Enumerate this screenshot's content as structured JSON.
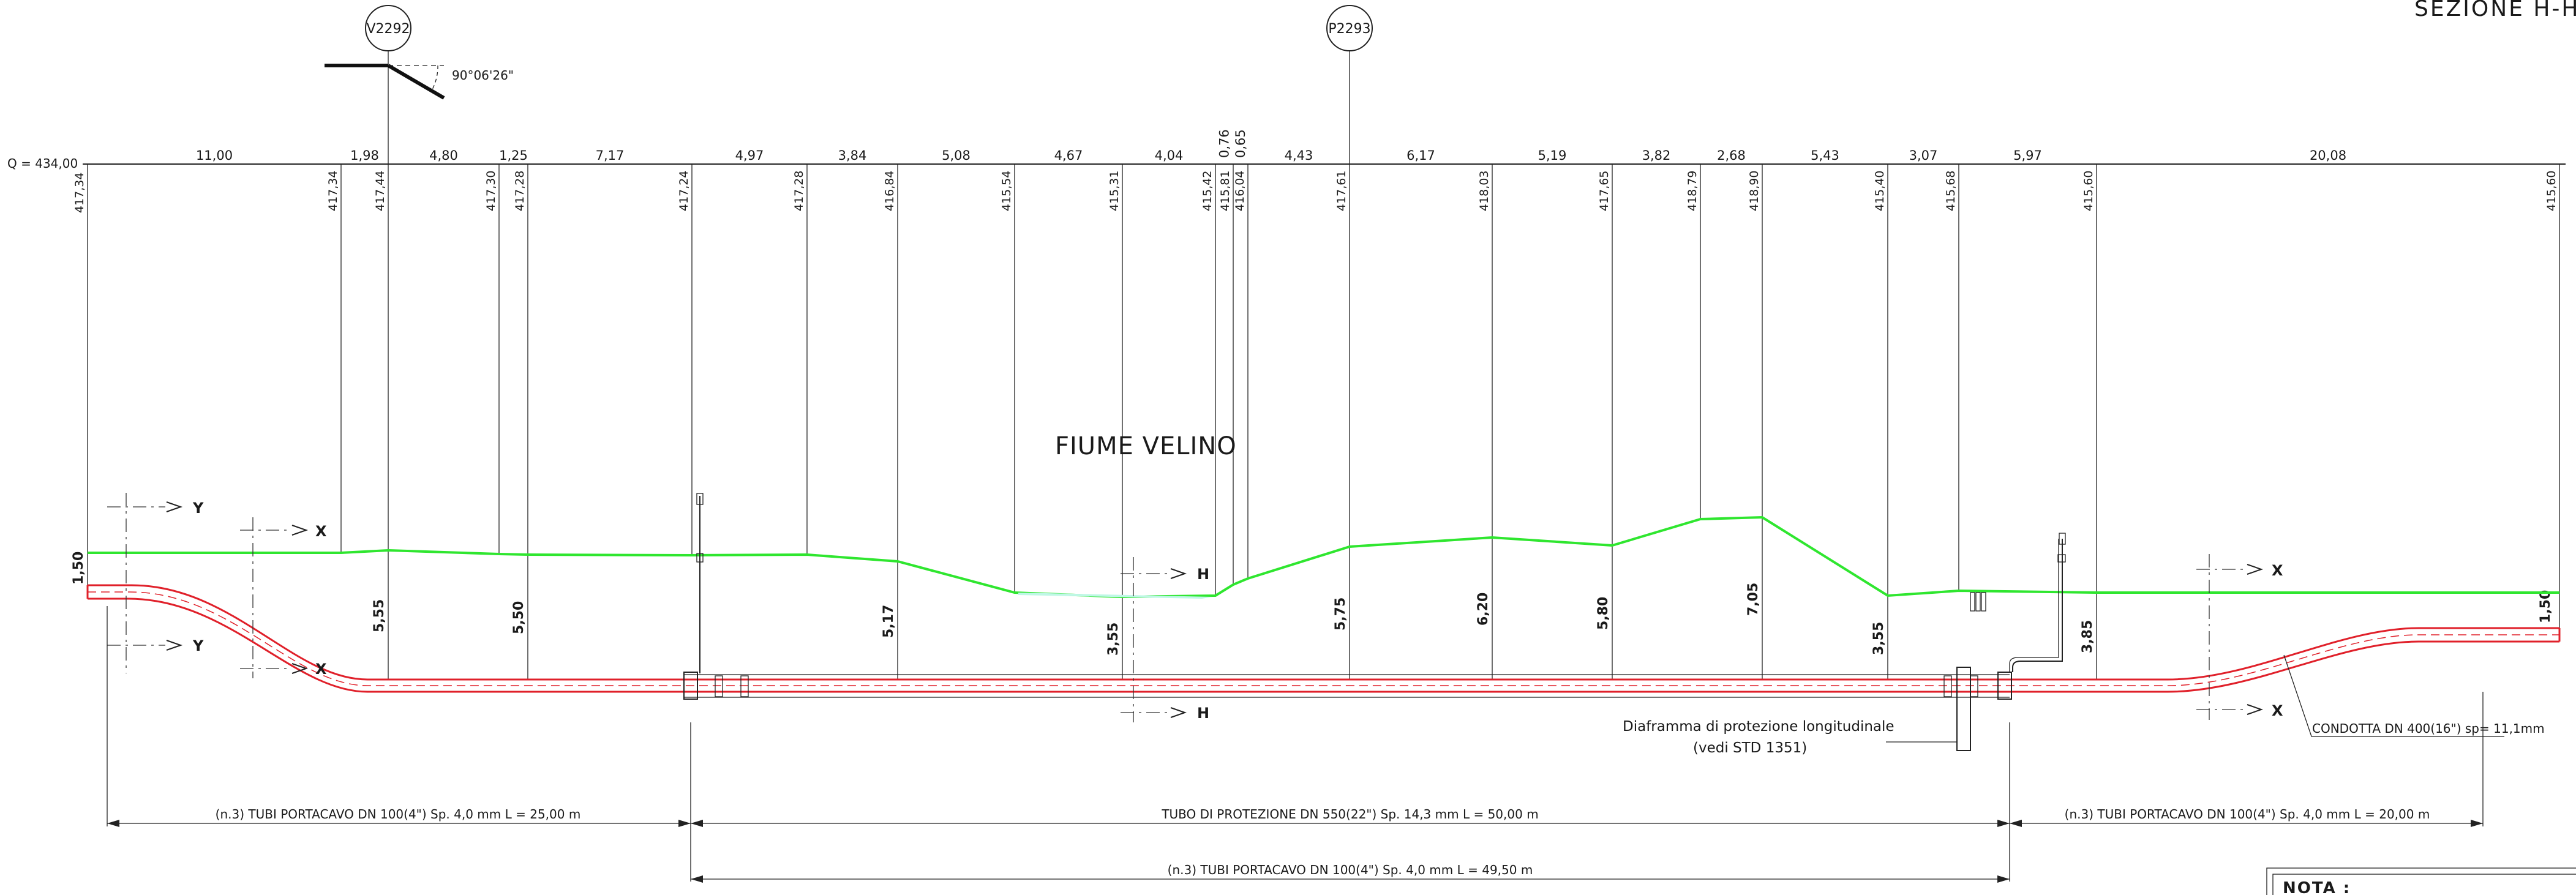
{
  "title": "SEZIONE H-H",
  "river_label": "FIUME VELINO",
  "datum_label": "Q = 434,00",
  "markers": [
    {
      "id": "V2292"
    },
    {
      "id": "P2293"
    }
  ],
  "angle_label": "90°06'26\"",
  "profile": [
    {
      "elevation": "417,34",
      "depth": "1,50"
    },
    {
      "elevation": "417,34",
      "depth": ""
    },
    {
      "elevation": "417,44",
      "depth": "5,55"
    },
    {
      "elevation": "417,30",
      "depth": ""
    },
    {
      "elevation": "417,28",
      "depth": "5,50"
    },
    {
      "elevation": "417,24",
      "depth": ""
    },
    {
      "elevation": "417,28",
      "depth": ""
    },
    {
      "elevation": "416,84",
      "depth": "5,17"
    },
    {
      "elevation": "415,54",
      "depth": ""
    },
    {
      "elevation": "415,31",
      "depth": "3,55"
    },
    {
      "elevation": "415,42",
      "depth": ""
    },
    {
      "elevation": "415,81",
      "depth": ""
    },
    {
      "elevation": "416,04",
      "depth": ""
    },
    {
      "elevation": "417,61",
      "depth": "5,75"
    },
    {
      "elevation": "418,03",
      "depth": "6,20"
    },
    {
      "elevation": "417,65",
      "depth": "5,80"
    },
    {
      "elevation": "418,79",
      "depth": ""
    },
    {
      "elevation": "418,90",
      "depth": "7,05"
    },
    {
      "elevation": "415,40",
      "depth": "3,55"
    },
    {
      "elevation": "415,68",
      "depth": ""
    },
    {
      "elevation": "415,60",
      "depth": "3,85"
    },
    {
      "elevation": "415,60",
      "depth": "1,50"
    }
  ],
  "partial_distances": [
    "11,00",
    "1,98",
    "4,80",
    "1,25",
    "7,17",
    "4,97",
    "3,84",
    "5,08",
    "4,67",
    "4,04",
    "0,76",
    "0,65",
    "4,43",
    "6,17",
    "5,19",
    "3,82",
    "2,68",
    "5,43",
    "3,07",
    "5,97",
    "20,08"
  ],
  "section_marks": {
    "y": "Y",
    "x": "X",
    "h": "H"
  },
  "diaphragm_note": {
    "line1": "Diaframma di protezione longitudinale",
    "line2": "(vedi STD   1351)"
  },
  "pipe_label": "CONDOTTA DN 400(16\") sp= 11,1mm",
  "cable_tubes_left": "(n.3) TUBI PORTACAVO DN 100(4\") Sp. 4,0 mm L = 25,00 m",
  "protection_tube": "TUBO DI PROTEZIONE DN 550(22\") Sp. 14,3 mm L = 50,00 m",
  "cable_tubes_right": "(n.3) TUBI PORTACAVO DN 100(4\") Sp. 4,0 mm L = 20,00 m",
  "cable_tubes_bottom": "(n.3) TUBI PORTACAVO DN 100(4\") Sp. 4,0 mm L = 49,50 m",
  "nota_label": "NOTA :",
  "colors": {
    "ground": "#2fe62f",
    "pipe": "#e0202a",
    "lines": "#222222"
  }
}
